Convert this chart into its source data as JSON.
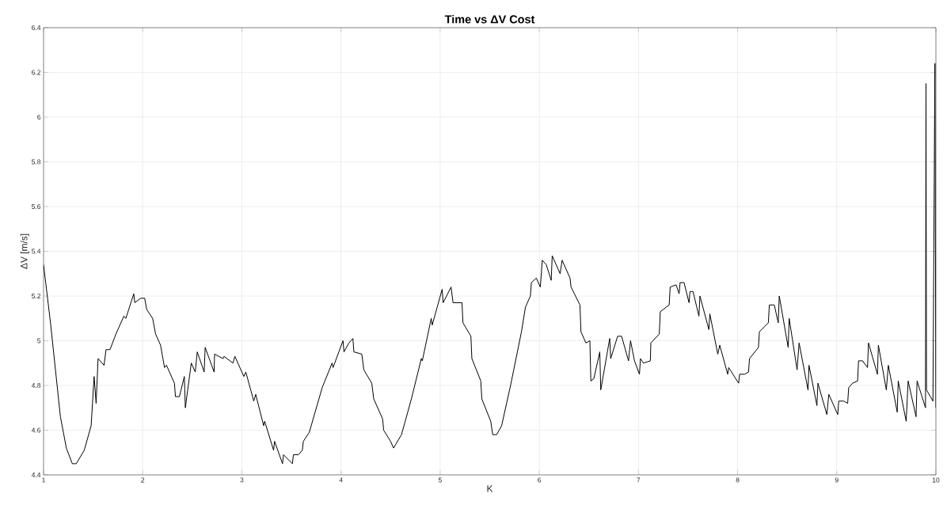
{
  "chart_data": {
    "type": "line",
    "title": "Time vs ΔV Cost",
    "xlabel": "K",
    "ylabel": "ΔV [m/s]",
    "color": "#000000",
    "marker": "none",
    "line_style": "solid",
    "grid": true,
    "xlim": [
      1,
      10
    ],
    "ylim": [
      4.4,
      6.4
    ],
    "xticks": [
      1,
      2,
      3,
      4,
      5,
      6,
      7,
      8,
      9,
      10
    ],
    "yticks": [
      4.4,
      4.6,
      4.8,
      5,
      5.2,
      5.4,
      5.6,
      5.8,
      6,
      6.2,
      6.4
    ],
    "x": [
      1.0,
      1.07,
      1.12,
      1.17,
      1.23,
      1.29,
      1.33,
      1.41,
      1.48,
      1.51,
      1.53,
      1.55,
      1.61,
      1.63,
      1.67,
      1.73,
      1.81,
      1.83,
      1.91,
      1.92,
      1.98,
      2.02,
      2.04,
      2.1,
      2.13,
      2.18,
      2.22,
      2.24,
      2.32,
      2.33,
      2.37,
      2.42,
      2.43,
      2.49,
      2.53,
      2.55,
      2.62,
      2.63,
      2.72,
      2.725,
      2.81,
      2.82,
      2.91,
      2.93,
      3.02,
      3.04,
      3.12,
      3.14,
      3.22,
      3.23,
      3.32,
      3.33,
      3.41,
      3.42,
      3.51,
      3.52,
      3.57,
      3.61,
      3.62,
      3.68,
      3.81,
      3.91,
      3.92,
      4.02,
      4.03,
      4.08,
      4.12,
      4.13,
      4.21,
      4.23,
      4.31,
      4.33,
      4.42,
      4.43,
      4.5,
      4.53,
      4.61,
      4.71,
      4.81,
      4.82,
      4.91,
      4.92,
      5.02,
      5.03,
      5.11,
      5.13,
      5.22,
      5.23,
      5.31,
      5.32,
      5.41,
      5.42,
      5.51,
      5.53,
      5.57,
      5.62,
      5.71,
      5.82,
      5.86,
      5.91,
      5.92,
      5.97,
      6.01,
      6.03,
      6.07,
      6.12,
      6.13,
      6.21,
      6.23,
      6.31,
      6.32,
      6.41,
      6.42,
      6.47,
      6.51,
      6.52,
      6.55,
      6.61,
      6.62,
      6.71,
      6.72,
      6.79,
      6.83,
      6.9,
      6.92,
      6.96,
      7.01,
      7.02,
      7.05,
      7.12,
      7.125,
      7.21,
      7.22,
      7.31,
      7.32,
      7.38,
      7.41,
      7.42,
      7.46,
      7.51,
      7.52,
      7.55,
      7.61,
      7.62,
      7.71,
      7.72,
      7.8,
      7.82,
      7.9,
      7.91,
      8.01,
      8.02,
      8.07,
      8.11,
      8.12,
      8.21,
      8.22,
      8.31,
      8.32,
      8.37,
      8.41,
      8.42,
      8.51,
      8.52,
      8.6,
      8.62,
      8.71,
      8.72,
      8.8,
      8.81,
      8.9,
      8.92,
      9.01,
      9.02,
      9.07,
      9.11,
      9.12,
      9.16,
      9.21,
      9.22,
      9.26,
      9.31,
      9.32,
      9.41,
      9.42,
      9.5,
      9.52,
      9.61,
      9.62,
      9.7,
      9.72,
      9.8,
      9.81,
      9.895,
      9.9,
      9.905,
      9.97,
      9.99,
      10.0
    ],
    "values": [
      5.34,
      5.08,
      4.87,
      4.66,
      4.52,
      4.45,
      4.45,
      4.51,
      4.62,
      4.84,
      4.72,
      4.92,
      4.89,
      4.96,
      4.96,
      5.03,
      5.11,
      5.1,
      5.21,
      5.17,
      5.19,
      5.19,
      5.14,
      5.1,
      5.03,
      4.98,
      4.88,
      4.89,
      4.81,
      4.75,
      4.75,
      4.84,
      4.7,
      4.9,
      4.86,
      4.95,
      4.86,
      4.97,
      4.86,
      4.94,
      4.92,
      4.93,
      4.9,
      4.93,
      4.84,
      4.86,
      4.73,
      4.76,
      4.62,
      4.64,
      4.51,
      4.55,
      4.45,
      4.49,
      4.45,
      4.49,
      4.49,
      4.51,
      4.55,
      4.59,
      4.79,
      4.9,
      4.88,
      5.0,
      4.95,
      4.99,
      5.01,
      4.95,
      4.94,
      4.87,
      4.81,
      4.74,
      4.65,
      4.6,
      4.55,
      4.52,
      4.58,
      4.74,
      4.92,
      4.91,
      5.1,
      5.07,
      5.23,
      5.17,
      5.24,
      5.17,
      5.17,
      5.08,
      5.02,
      4.92,
      4.82,
      4.74,
      4.64,
      4.58,
      4.58,
      4.62,
      4.8,
      5.04,
      5.15,
      5.2,
      5.26,
      5.28,
      5.24,
      5.36,
      5.34,
      5.27,
      5.38,
      5.3,
      5.36,
      5.28,
      5.24,
      5.16,
      5.04,
      4.99,
      5.0,
      4.82,
      4.83,
      4.95,
      4.78,
      5.01,
      4.92,
      5.02,
      5.02,
      4.91,
      5.0,
      4.91,
      4.85,
      4.92,
      4.9,
      4.91,
      4.99,
      5.03,
      5.13,
      5.16,
      5.24,
      5.25,
      5.21,
      5.26,
      5.26,
      5.17,
      5.22,
      5.22,
      5.11,
      5.2,
      5.05,
      5.12,
      4.94,
      4.98,
      4.85,
      4.88,
      4.81,
      4.85,
      4.85,
      4.86,
      4.92,
      4.97,
      5.04,
      5.08,
      5.16,
      5.16,
      5.08,
      5.2,
      4.97,
      5.1,
      4.87,
      4.99,
      4.78,
      4.89,
      4.71,
      4.81,
      4.67,
      4.76,
      4.67,
      4.73,
      4.73,
      4.72,
      4.79,
      4.81,
      4.82,
      4.91,
      4.91,
      4.88,
      4.99,
      4.85,
      4.98,
      4.78,
      4.89,
      4.68,
      4.82,
      4.64,
      4.82,
      4.66,
      4.82,
      4.7,
      6.15,
      4.78,
      4.73,
      6.24,
      4.7
    ]
  }
}
